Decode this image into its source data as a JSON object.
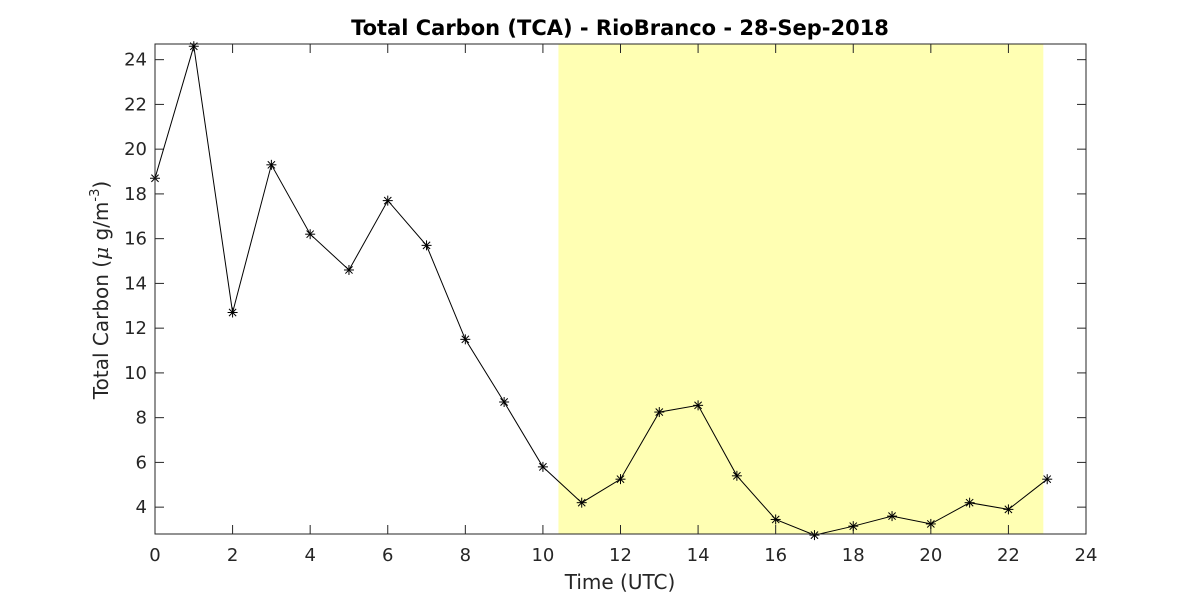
{
  "chart_data": {
    "type": "line",
    "title": "Total Carbon (TCA) - RioBranco - 28-Sep-2018",
    "xlabel": "Time (UTC)",
    "ylabel": {
      "prefix": "Total Carbon (",
      "mu": "μ",
      "unit": " g/m",
      "exponent": "-3",
      "suffix": ")"
    },
    "xlim": [
      0,
      24
    ],
    "ylim": [
      2.8,
      24.7
    ],
    "xticks": [
      0,
      2,
      4,
      6,
      8,
      10,
      12,
      14,
      16,
      18,
      20,
      22,
      24
    ],
    "yticks": [
      4,
      6,
      8,
      10,
      12,
      14,
      16,
      18,
      20,
      22,
      24
    ],
    "grid": false,
    "marker": "asterisk",
    "line_color": "#000000",
    "highlight": {
      "x_start": 10.4,
      "x_end": 22.9,
      "color": "#ffffb3"
    },
    "x": [
      0,
      1,
      2,
      3,
      4,
      5,
      6,
      7,
      8,
      9,
      10,
      11,
      12,
      13,
      14,
      15,
      16,
      17,
      18,
      19,
      20,
      21,
      22,
      23
    ],
    "y": [
      18.7,
      24.6,
      12.7,
      19.3,
      16.2,
      14.6,
      17.7,
      15.7,
      11.5,
      8.7,
      5.8,
      4.2,
      5.25,
      8.25,
      8.55,
      5.4,
      3.45,
      2.75,
      3.15,
      3.6,
      3.25,
      4.2,
      3.9,
      5.25
    ]
  }
}
